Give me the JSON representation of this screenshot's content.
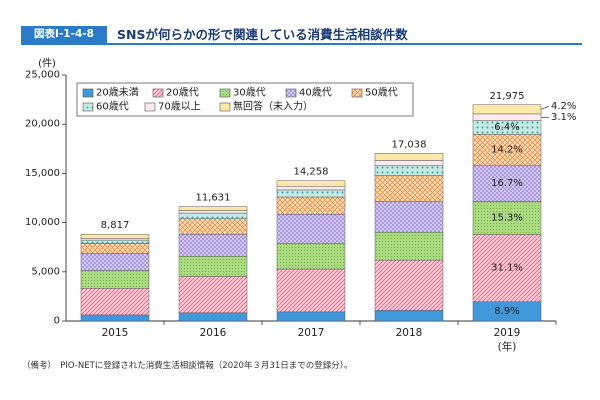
{
  "figure": {
    "number": "図表Ⅰ-1-4-8",
    "note": "（備考）　PIO-NETに登録された消費生活相談情報（2020年３月31日までの登録分）。"
  },
  "theme": {
    "accent": "#2b7bc6",
    "title_color": "#173b78"
  },
  "chart_data": {
    "type": "bar",
    "stacked": true,
    "title": "SNSが何らかの形で関連している消費生活相談件数",
    "xlabel": "(年)",
    "ylabel": "(件)",
    "categories": [
      "2015",
      "2016",
      "2017",
      "2018",
      "2019"
    ],
    "ylim": [
      0,
      25000
    ],
    "yticks": [
      0,
      5000,
      10000,
      15000,
      20000,
      25000
    ],
    "ytick_labels": [
      "0",
      "5,000",
      "10,000",
      "15,000",
      "20,000",
      "25,000"
    ],
    "totals": [
      8817,
      11631,
      14258,
      17038,
      21975
    ],
    "total_labels": [
      "8,817",
      "11,631",
      "14,258",
      "17,038",
      "21,975"
    ],
    "grid": false,
    "legend": "top-left",
    "series": [
      {
        "name": "20歳未満",
        "color": "#4098da",
        "accent": "#4098da",
        "values": [
          620,
          830,
          930,
          1080,
          1955
        ],
        "labels": [
          null,
          null,
          null,
          null,
          "8.9%"
        ]
      },
      {
        "name": "20歳代",
        "color": "#fcd9e1",
        "accent": "#ec6b8c",
        "values": [
          2700,
          3700,
          4350,
          5100,
          6840
        ],
        "labels": [
          null,
          null,
          null,
          null,
          "31.1%"
        ]
      },
      {
        "name": "30歳代",
        "color": "#aedb86",
        "accent": "#6fb63c",
        "values": [
          1810,
          2050,
          2620,
          2850,
          3365
        ],
        "labels": [
          null,
          null,
          null,
          null,
          "15.3%"
        ]
      },
      {
        "name": "40歳代",
        "color": "#d3c8f2",
        "accent": "#8a72d0",
        "values": [
          1720,
          2250,
          2950,
          3100,
          3672
        ],
        "labels": [
          null,
          null,
          null,
          null,
          "16.7%"
        ]
      },
      {
        "name": "50歳代",
        "color": "#fde3c8",
        "accent": "#f28e3d",
        "values": [
          1030,
          1560,
          1750,
          2650,
          3122
        ],
        "labels": [
          null,
          null,
          null,
          null,
          "14.2%"
        ]
      },
      {
        "name": "60歳代",
        "color": "#c6e9e6",
        "accent": "#33a69f",
        "values": [
          340,
          580,
          720,
          1050,
          1407
        ],
        "labels": [
          null,
          null,
          null,
          null,
          "6.4%"
        ]
      },
      {
        "name": "70歳以上",
        "color": "#fdeaf0",
        "accent": "#e98aa4",
        "values": [
          180,
          260,
          380,
          480,
          685
        ],
        "labels": [
          null,
          null,
          null,
          null,
          "3.1%"
        ]
      },
      {
        "name": "無回答（未入力）",
        "color": "#fce9a9",
        "accent": "#fce9a9",
        "values": [
          417,
          401,
          558,
          728,
          929
        ],
        "labels": [
          null,
          null,
          null,
          null,
          "4.2%"
        ]
      }
    ]
  }
}
